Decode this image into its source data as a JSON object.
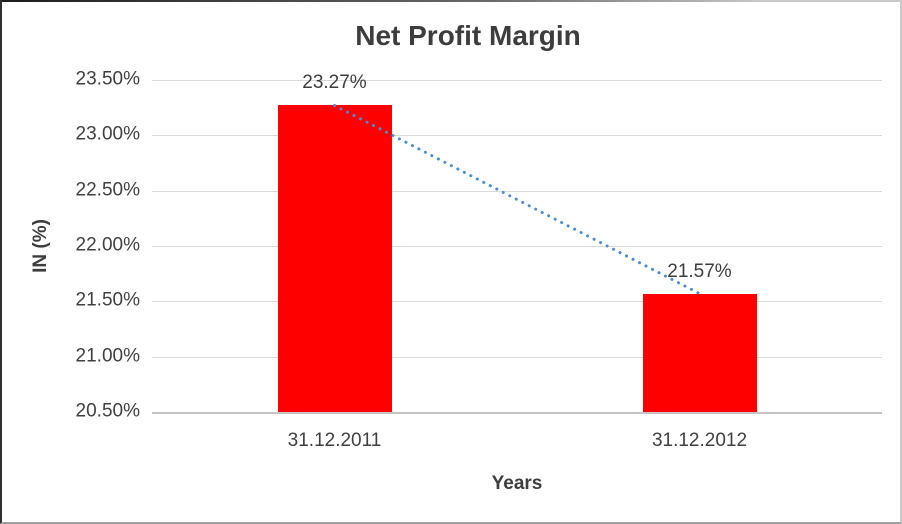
{
  "chart_data": {
    "type": "bar",
    "title": "Net Profit Margin",
    "xlabel": "Years",
    "ylabel": "IN (%)",
    "categories": [
      "31.12.2011",
      "31.12.2012"
    ],
    "series": [
      {
        "name": "Net Profit Margin",
        "color": "#FF0000",
        "values": [
          23.27,
          21.57
        ]
      }
    ],
    "data_labels": [
      "23.27%",
      "21.57%"
    ],
    "ylim": [
      20.5,
      23.5
    ],
    "ytick_step": 0.5,
    "ytick_labels": [
      "23.50%",
      "23.00%",
      "22.50%",
      "22.00%",
      "21.50%",
      "21.00%",
      "20.50%"
    ],
    "grid": true,
    "legend": false,
    "trendline": {
      "style": "dotted",
      "color": "#4A8CD3",
      "from": 23.27,
      "to": 21.57
    }
  },
  "colors": {
    "bar": "#FF0000",
    "trendline": "#4A8CD3",
    "gridline": "#D9D9D9",
    "axis_line": "#C3C3C3",
    "text": "#3F3F3F"
  }
}
